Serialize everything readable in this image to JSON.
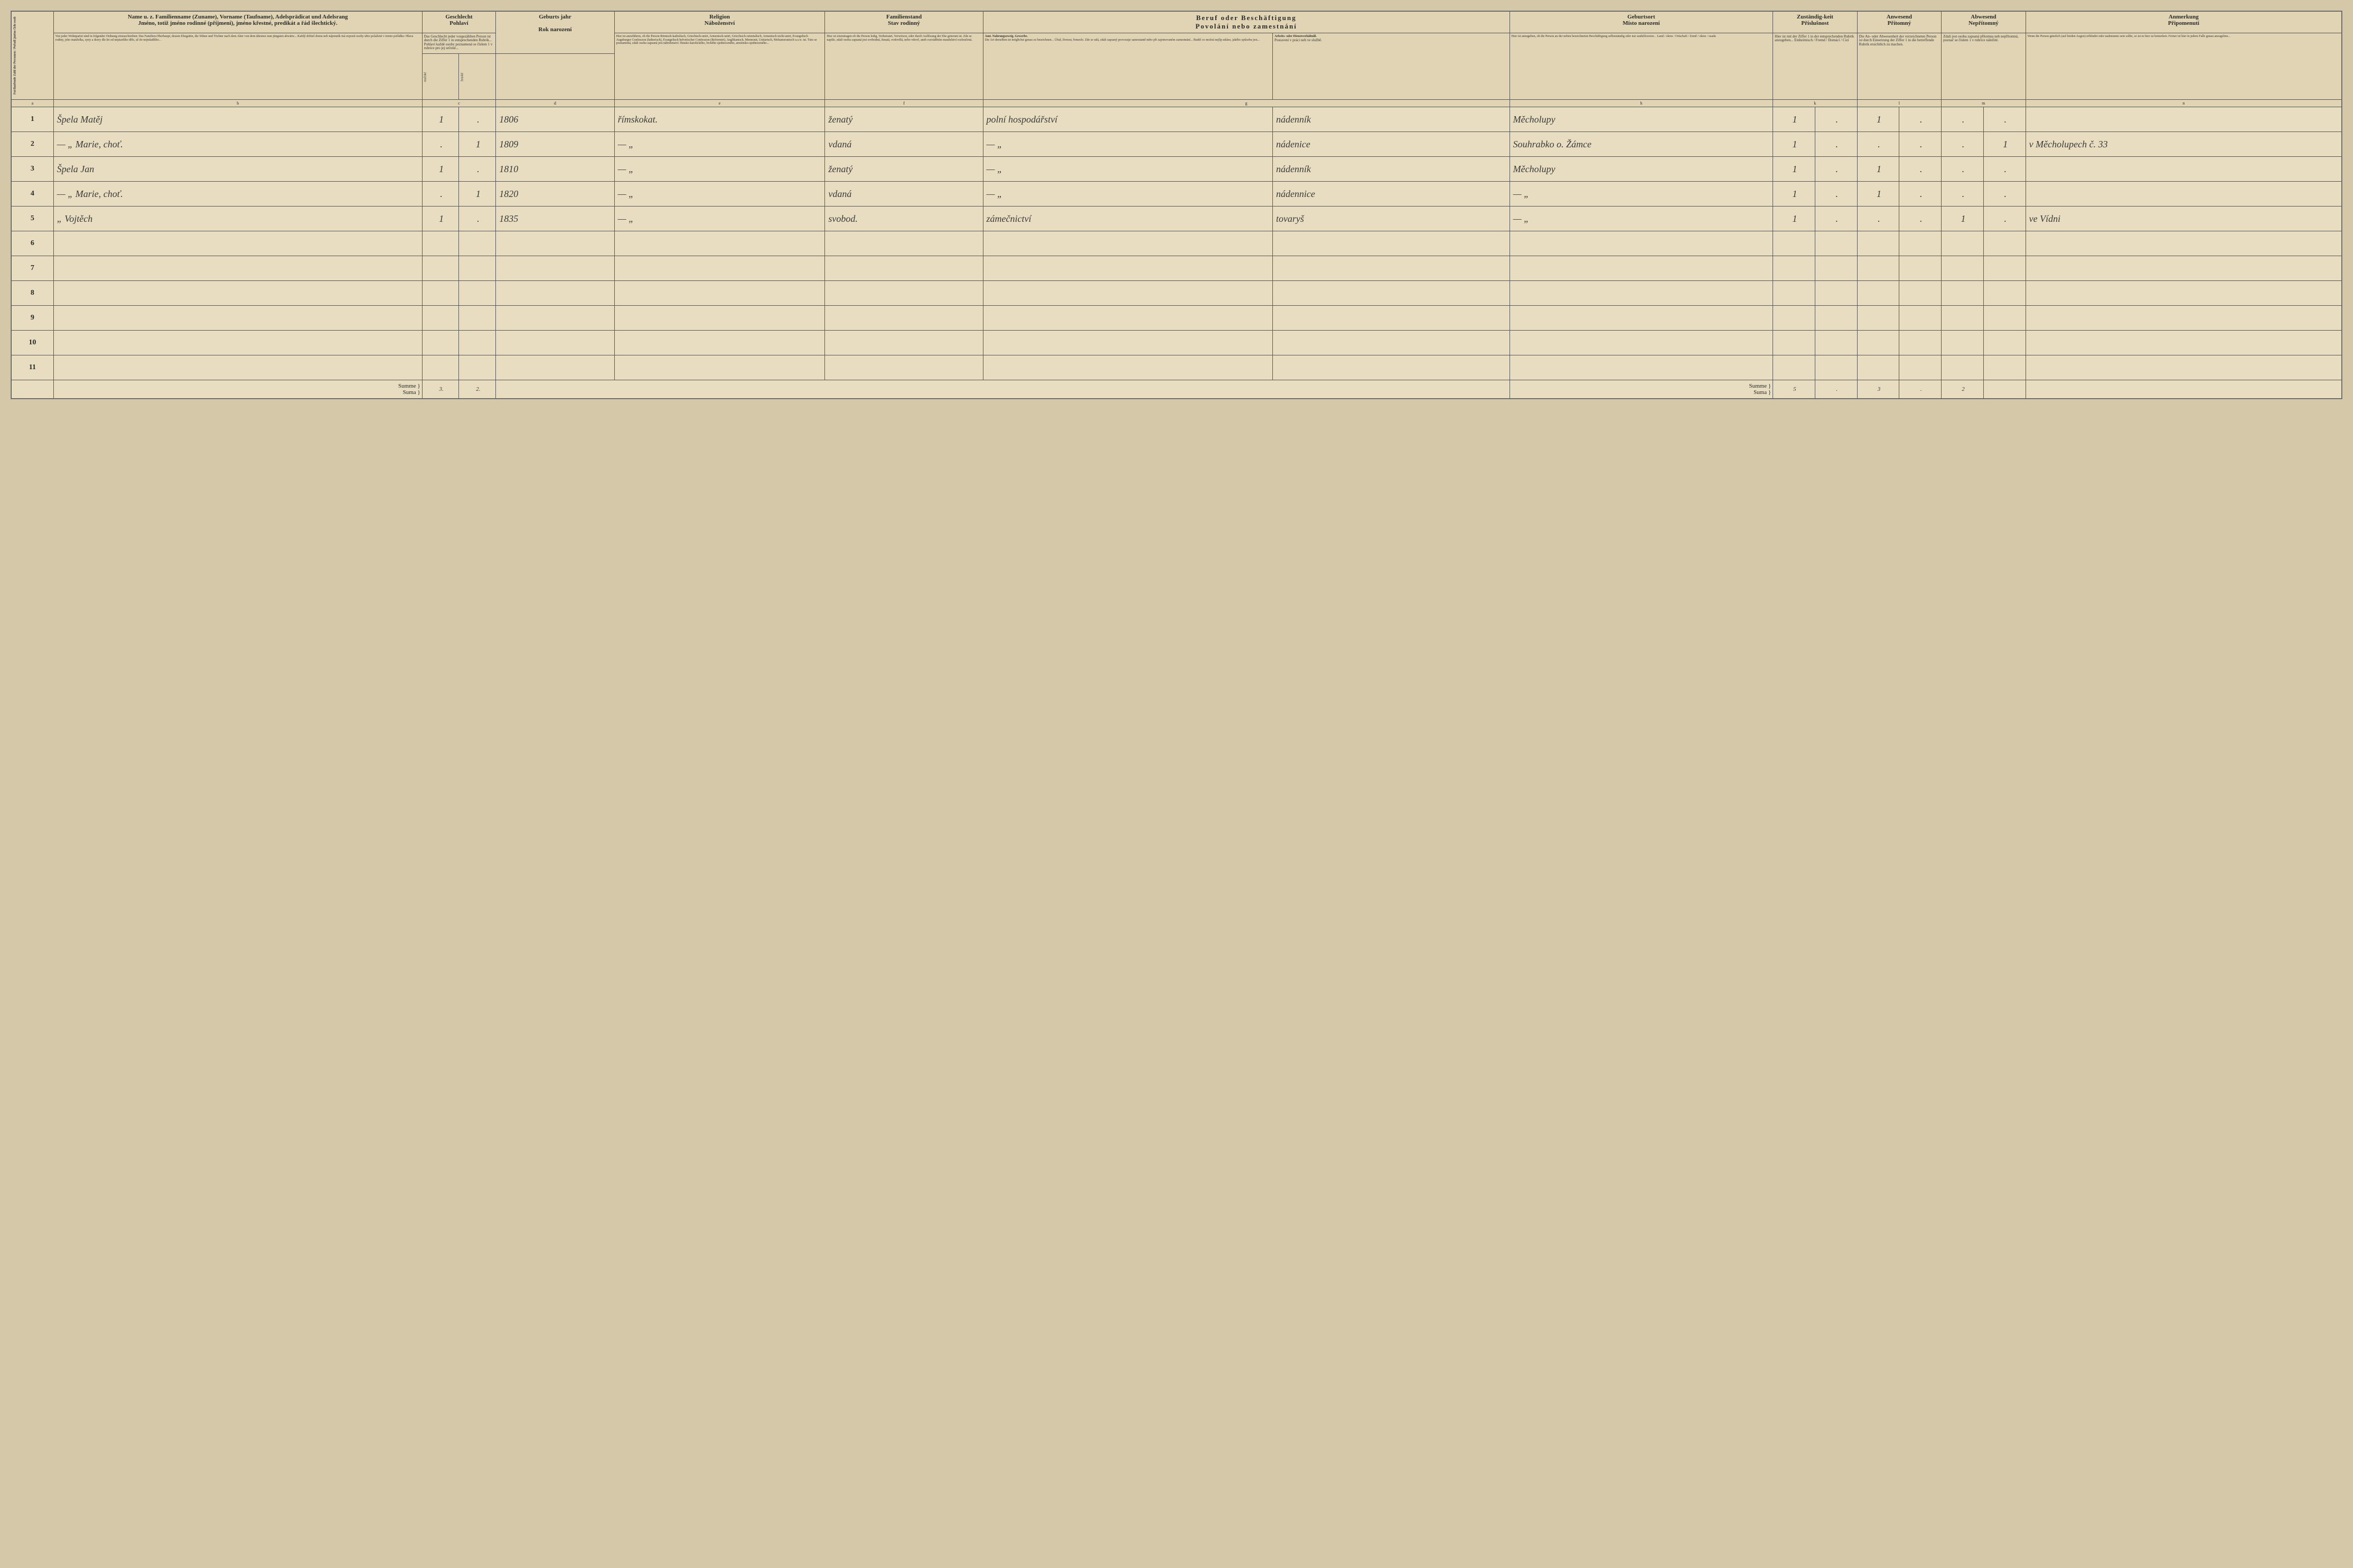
{
  "headers": {
    "col_a": {
      "de": "Fortlaufende Zahl der Personen",
      "cz": "Pořadí jméno číslo osob"
    },
    "col_b": {
      "de": "Name u. z. Familienname (Zuname), Vorname (Taufname), Adelsprädicat und Adelsrang",
      "cz": "Jméno, totiž jméno rodinné (příjmení), jméno křestné, predikát a řád šlechtický."
    },
    "col_c": {
      "de": "Geschlecht",
      "cz": "Pohlaví",
      "sub_m": "mužské",
      "sub_f": "ženské"
    },
    "col_d": {
      "de": "Geburts jahr",
      "cz": "Rok narození"
    },
    "col_e": {
      "de": "Religion",
      "cz": "Náboženství"
    },
    "col_f": {
      "de": "Familienstand",
      "cz": "Stav rodinný"
    },
    "col_g": {
      "de": "Beruf oder Beschäftigung",
      "cz": "Povolání nebo zamestnání"
    },
    "col_h": {
      "de": "Geburtsort",
      "cz": "Místo narození"
    },
    "col_k": {
      "de": "Zuständig-keit",
      "cz": "Příslušnost"
    },
    "col_l": {
      "de": "Anwesend",
      "cz": "Přítomný"
    },
    "col_m": {
      "de": "Abwesend",
      "cz": "Nepřítomný"
    },
    "col_n": {
      "de": "Anmerkung",
      "cz": "Připomenutí"
    }
  },
  "desc": {
    "b": "Von jeder Wohnpartei sind in folgender Ordnung einzuschreiben: Das Familien-Oberhaupt, dessen Ehegattin, die Söhne und Töchter nach dem Alter von dem ältesten zum jüngsten abwärts... Každý držitel domu neb nájemník má uvposti osoby ubto polažené v tomto pořádku: Hlava rodiny, jeho manželka, syny a dcery dle let od nejstaršího děle, až do nejmladšího...",
    "c": "Das Geschlecht jeder vorgezählten Person ist durch die Ziffer 1 in entsprechenden Rubrik... Pohlaví každé osoby poznamená se číslem 1 v rubrice pro jej určené...",
    "e": "Hier ist anzuführen, ob die Person Römisch-katholisch, Griechisch-unirt, Armenisch-unirt, Griechisch-orientalisch, Armenisch nicht-unirt, Evangelisch Augsburger Confession (lutherisch), Evangelisch helvetischer Confession (Reformirt), Anglikanisch, Mennonit, Unitarisch, Mohameranisch u.s.w. ist. Tuto se poznamená, zdali osoba zapsaná jest náboženství: římsko-katolického, řeckého sjednoceného, arménsko-sjednoceného...",
    "f": "Hier ist einzutragen ob die Person ledig, Verheiratet, Verwitwet, oder durch Auflösung der Ehe getrennt ist. Zde se napíše, zdali osoba zapsaná jest svobodná, ženatá, ovdovělá, nebo vdově, aneb rozváděním manželství rozloučená.",
    "g_title": "Amt. Nahrungszweig. Gewerbe.",
    "g": "Die Art derselben ist möglichst genau zu bezeichnen... Úřad, živnost, řemeslo. Zde se udá, zdali zapsaný provozuje samostatně nebo při zajemovaném zamestnání... Budiž co možná nejlíp udáno, jakého způsobu jest...",
    "h_title": "Arbeits- oder Dienstverhältniß.",
    "h": "Hier ist anzugeben, ob die Person an der neben bezeichneten Beschäftigung selbstständig oder nur aushilfsweise... Land / okres / Ortschaft / Země / okres / osada",
    "k": "Hier ist mit der Ziffer 1 in der entsprechenden Rubrik anzugeben... Einheimisch / Fremd / Domácí / Cizí",
    "n": "Wenn die Person gänzlich (auf beiden Augen) erblindet oder taubstumm sein sollte, so ist es hier zu bemerken. Ferner ist hier in jedem Falle genau anzugeben..."
  },
  "col_letters": [
    "a",
    "b",
    "c",
    "",
    "d",
    "e",
    "f",
    "g",
    "",
    "h",
    "k",
    "",
    "l",
    "",
    "m",
    "",
    "n"
  ],
  "rows": [
    {
      "n": "1",
      "name": "Špela Matěj",
      "m": "1",
      "f": ".",
      "year": "1806",
      "rel": "římskokat.",
      "fam": "ženatý",
      "occ1": "polní hospodářství",
      "occ2": "nádenník",
      "birth": "Měcholupy",
      "k1": "1",
      "k2": ".",
      "l1": "1",
      "l2": ".",
      "m1": ".",
      "m2": ".",
      "note": ""
    },
    {
      "n": "2",
      "name": "— „ Marie, choť.",
      "m": ".",
      "f": "1",
      "year": "1809",
      "rel": "— „",
      "fam": "vdaná",
      "occ1": "— „",
      "occ2": "nádenice",
      "birth": "Souhrabko o. Žámce",
      "k1": "1",
      "k2": ".",
      "l1": ".",
      "l2": ".",
      "m1": ".",
      "m2": "1",
      "note": "v Měcholupech č. 33"
    },
    {
      "n": "3",
      "name": "Špela Jan",
      "m": "1",
      "f": ".",
      "year": "1810",
      "rel": "— „",
      "fam": "ženatý",
      "occ1": "— „",
      "occ2": "nádenník",
      "birth": "Měcholupy",
      "k1": "1",
      "k2": ".",
      "l1": "1",
      "l2": ".",
      "m1": ".",
      "m2": ".",
      "note": ""
    },
    {
      "n": "4",
      "name": "— „ Marie, choť.",
      "m": ".",
      "f": "1",
      "year": "1820",
      "rel": "— „",
      "fam": "vdaná",
      "occ1": "— „",
      "occ2": "nádennice",
      "birth": "— „",
      "k1": "1",
      "k2": ".",
      "l1": "1",
      "l2": ".",
      "m1": ".",
      "m2": ".",
      "note": ""
    },
    {
      "n": "5",
      "name": "„ Vojtěch",
      "m": "1",
      "f": ".",
      "year": "1835",
      "rel": "— „",
      "fam": "svobod.",
      "occ1": "zámečnictví",
      "occ2": "tovaryš",
      "birth": "— „",
      "k1": "1",
      "k2": ".",
      "l1": ".",
      "l2": ".",
      "m1": "1",
      "m2": ".",
      "note": "ve Vídni"
    },
    {
      "n": "6",
      "name": "",
      "m": "",
      "f": "",
      "year": "",
      "rel": "",
      "fam": "",
      "occ1": "",
      "occ2": "",
      "birth": "",
      "k1": "",
      "k2": "",
      "l1": "",
      "l2": "",
      "m1": "",
      "m2": "",
      "note": ""
    },
    {
      "n": "7",
      "name": "",
      "m": "",
      "f": "",
      "year": "",
      "rel": "",
      "fam": "",
      "occ1": "",
      "occ2": "",
      "birth": "",
      "k1": "",
      "k2": "",
      "l1": "",
      "l2": "",
      "m1": "",
      "m2": "",
      "note": ""
    },
    {
      "n": "8",
      "name": "",
      "m": "",
      "f": "",
      "year": "",
      "rel": "",
      "fam": "",
      "occ1": "",
      "occ2": "",
      "birth": "",
      "k1": "",
      "k2": "",
      "l1": "",
      "l2": "",
      "m1": "",
      "m2": "",
      "note": ""
    },
    {
      "n": "9",
      "name": "",
      "m": "",
      "f": "",
      "year": "",
      "rel": "",
      "fam": "",
      "occ1": "",
      "occ2": "",
      "birth": "",
      "k1": "",
      "k2": "",
      "l1": "",
      "l2": "",
      "m1": "",
      "m2": "",
      "note": ""
    },
    {
      "n": "10",
      "name": "",
      "m": "",
      "f": "",
      "year": "",
      "rel": "",
      "fam": "",
      "occ1": "",
      "occ2": "",
      "birth": "",
      "k1": "",
      "k2": "",
      "l1": "",
      "l2": "",
      "m1": "",
      "m2": "",
      "note": ""
    },
    {
      "n": "11",
      "name": "",
      "m": "",
      "f": "",
      "year": "",
      "rel": "",
      "fam": "",
      "occ1": "",
      "occ2": "",
      "birth": "",
      "k1": "",
      "k2": "",
      "l1": "",
      "l2": "",
      "m1": "",
      "m2": "",
      "note": ""
    }
  ],
  "summary": {
    "label_de": "Summe",
    "label_cz": "Suma",
    "m_total": "3.",
    "f_total": "2.",
    "t1": "5",
    "t2": ".",
    "t3": "3",
    "t4": ".",
    "t5": "2"
  },
  "colwidths": {
    "num": "1.6%",
    "name": "14%",
    "sex": "1.4%",
    "year": "4.5%",
    "rel": "8%",
    "fam": "6%",
    "occ": "11%",
    "occ2": "9%",
    "birth": "10%",
    "k": "1.6%",
    "lm": "1.6%",
    "note": "12%"
  }
}
